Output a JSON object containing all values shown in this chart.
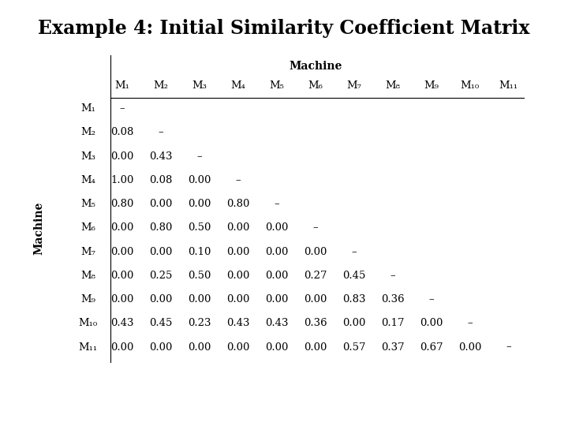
{
  "title": "Example 4: Initial Similarity Coefficient Matrix",
  "col_labels": [
    "M₁",
    "M₂",
    "M₃",
    "M₄",
    "M₅",
    "M₆",
    "M₇",
    "M₈",
    "M₉",
    "M₁₀",
    "M₁₁"
  ],
  "row_labels": [
    "M₁",
    "M₂",
    "M₃",
    "M₄",
    "M₅",
    "M₆",
    "M₇",
    "M₈",
    "M₉",
    "M₁₀",
    "M₁₁"
  ],
  "table_data": [
    [
      "–",
      "",
      "",
      "",
      "",
      "",
      "",
      "",
      "",
      "",
      ""
    ],
    [
      "0.08",
      "–",
      "",
      "",
      "",
      "",
      "",
      "",
      "",
      "",
      ""
    ],
    [
      "0.00",
      "0.43",
      "–",
      "",
      "",
      "",
      "",
      "",
      "",
      "",
      ""
    ],
    [
      "1.00",
      "0.08",
      "0.00",
      "–",
      "",
      "",
      "",
      "",
      "",
      "",
      ""
    ],
    [
      "0.80",
      "0.00",
      "0.00",
      "0.80",
      "–",
      "",
      "",
      "",
      "",
      "",
      ""
    ],
    [
      "0.00",
      "0.80",
      "0.50",
      "0.00",
      "0.00",
      "–",
      "",
      "",
      "",
      "",
      ""
    ],
    [
      "0.00",
      "0.00",
      "0.10",
      "0.00",
      "0.00",
      "0.00",
      "–",
      "",
      "",
      "",
      ""
    ],
    [
      "0.00",
      "0.25",
      "0.50",
      "0.00",
      "0.00",
      "0.27",
      "0.45",
      "–",
      "",
      "",
      ""
    ],
    [
      "0.00",
      "0.00",
      "0.00",
      "0.00",
      "0.00",
      "0.00",
      "0.83",
      "0.36",
      "–",
      "",
      ""
    ],
    [
      "0.43",
      "0.45",
      "0.23",
      "0.43",
      "0.43",
      "0.36",
      "0.00",
      "0.17",
      "0.00",
      "–",
      ""
    ],
    [
      "0.00",
      "0.00",
      "0.00",
      "0.00",
      "0.00",
      "0.00",
      "0.57",
      "0.37",
      "0.67",
      "0.00",
      "–"
    ]
  ],
  "header_label": "Machine",
  "row_axis_label": "Machine",
  "bg_color": "#ffffff",
  "text_color": "#000000",
  "title_fontsize": 17,
  "table_fontsize": 9.5,
  "header_fontsize": 10,
  "axis_label_fontsize": 10
}
